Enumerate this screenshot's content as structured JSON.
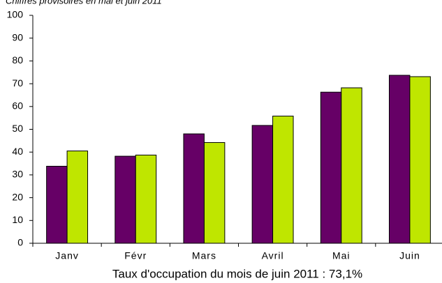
{
  "chart_data": {
    "type": "bar",
    "subtitle": "Chiffres provisoires en mai et juin 2011",
    "title": "Taux d'occupation du mois de juin 2011 : 73,1%",
    "categories": [
      "Janv",
      "Févr",
      "Mars",
      "Avril",
      "Mai",
      "Juin"
    ],
    "series": [
      {
        "color": "#660066",
        "values": [
          33.8,
          38.2,
          48,
          51.7,
          66.3,
          73.7
        ]
      },
      {
        "color": "#bfe600",
        "values": [
          40.5,
          38.7,
          44.2,
          55.8,
          68.2,
          73.1
        ]
      }
    ],
    "ylim": [
      0,
      100
    ],
    "yticks": [
      0,
      10,
      20,
      30,
      40,
      50,
      60,
      70,
      80,
      90,
      100
    ],
    "grid": false
  }
}
